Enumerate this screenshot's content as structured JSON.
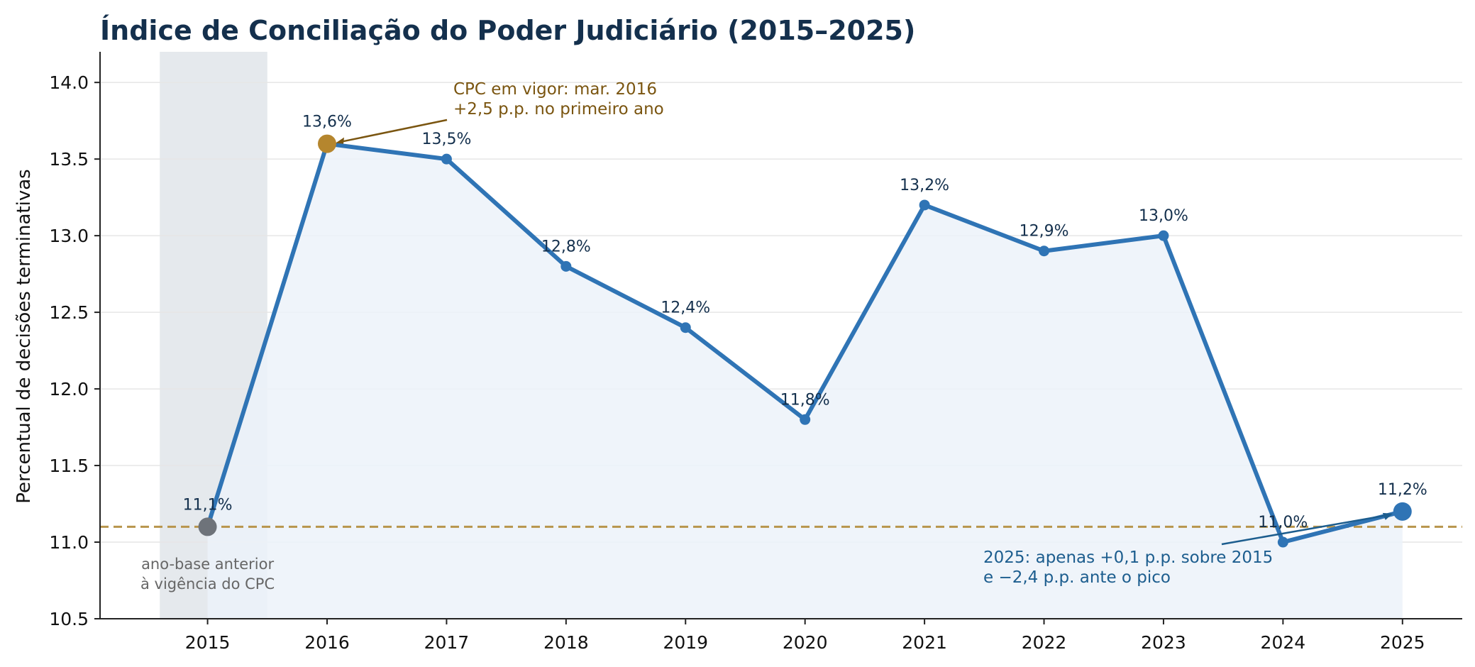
{
  "chart_data": {
    "type": "line",
    "title": "Índice de Conciliação do Poder Judiciário (2015–2025)",
    "xlabel": "",
    "ylabel": "Percentual de decisões terminativas",
    "x": [
      2015,
      2016,
      2017,
      2018,
      2019,
      2020,
      2021,
      2022,
      2023,
      2024,
      2025
    ],
    "values": [
      11.1,
      13.6,
      13.5,
      12.8,
      12.4,
      11.8,
      13.2,
      12.9,
      13.0,
      11.0,
      11.2
    ],
    "data_labels": [
      "11,1%",
      "13,6%",
      "13,5%",
      "12,8%",
      "12,4%",
      "11,8%",
      "13,2%",
      "12,9%",
      "13,0%",
      "11,0%",
      "11,2%"
    ],
    "x_ticks": [
      "2015",
      "2016",
      "2017",
      "2018",
      "2019",
      "2020",
      "2021",
      "2022",
      "2023",
      "2024",
      "2025"
    ],
    "y_ticks": [
      "10.5",
      "11.0",
      "11.5",
      "12.0",
      "12.5",
      "13.0",
      "13.5",
      "14.0"
    ],
    "y_tick_values": [
      10.5,
      11.0,
      11.5,
      12.0,
      12.5,
      13.0,
      13.5,
      14.0
    ],
    "ylim": [
      10.5,
      14.2
    ],
    "xlim": [
      2014.1,
      2025.5
    ],
    "fill_base": 10.5,
    "reference_line": 11.1,
    "shaded_band": [
      2014.6,
      2015.5
    ],
    "highlight_points": {
      "base": 2015,
      "peak": 2016,
      "last": 2025
    },
    "grid": "horizontal",
    "legend": "none",
    "annotations": {
      "cpc": [
        "CPC em vigor: mar. 2016",
        "+2,5 p.p. no primeiro ano"
      ],
      "latest": [
        "2025: apenas +0,1 p.p. sobre 2015",
        "e −2,4 p.p. ante o pico"
      ],
      "base": [
        "ano-base anterior",
        "à vigência do CPC"
      ]
    },
    "colors": {
      "line": "#2f74b5",
      "fill": "#ecf2f9",
      "peak": "#b5862e",
      "base": "#6e737a",
      "reference": "#b8954c",
      "band": "#e5e9ed",
      "title": "#14304d",
      "cpc_text": "#7a5510",
      "latest_text": "#1c5d8e",
      "base_text": "#666666"
    }
  }
}
